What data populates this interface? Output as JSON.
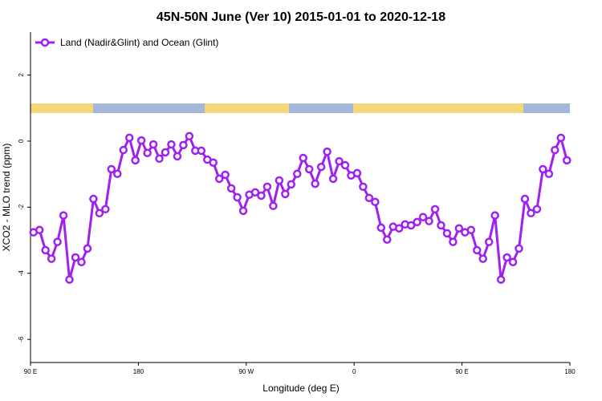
{
  "chart_data": {
    "type": "line",
    "title": "45N-50N June (Ver 10)   2015-01-01 to 2020-12-18",
    "x_label": "Longitude (deg E)",
    "y_label": "XCO2 - MLO trend (ppm)",
    "x": [
      92.5,
      97.5,
      102.5,
      107.5,
      112.5,
      117.5,
      122.5,
      127.5,
      132.5,
      137.5,
      142.5,
      147.5,
      152.5,
      157.5,
      162.5,
      167.5,
      172.5,
      177.5,
      182.5,
      187.5,
      192.5,
      197.5,
      202.5,
      207.5,
      212.5,
      217.5,
      222.5,
      227.5,
      232.5,
      237.5,
      242.5,
      247.5,
      252.5,
      257.5,
      262.5,
      267.5,
      272.5,
      277.5,
      282.5,
      287.5,
      292.5,
      297.5,
      302.5,
      307.5,
      312.5,
      317.5,
      322.5,
      327.5,
      332.5,
      337.5,
      342.5,
      347.5,
      352.5,
      357.5,
      362.5,
      367.5,
      372.5,
      377.5,
      382.5,
      387.5,
      392.5,
      397.5,
      402.5,
      407.5,
      412.5,
      417.5,
      422.5,
      427.5,
      432.5,
      437.5,
      442.5,
      447.5,
      452.5,
      457.5,
      462.5,
      467.5,
      472.5,
      477.5,
      482.5,
      487.5,
      492.5,
      497.5,
      502.5,
      507.5,
      512.5,
      517.5,
      522.5,
      527.5,
      532.5,
      537.5
    ],
    "series": [
      {
        "name": "Land (Nadir&Glint) and Ocean (Glint)",
        "color": "#a020f0",
        "values": [
          -2.76,
          -2.69,
          -3.3,
          -3.56,
          -3.05,
          -2.25,
          -4.19,
          -3.52,
          -3.66,
          -3.25,
          -1.75,
          -2.18,
          -2.06,
          -0.85,
          -0.99,
          -0.27,
          0.1,
          -0.58,
          0.02,
          -0.36,
          -0.1,
          -0.53,
          -0.34,
          -0.1,
          -0.46,
          -0.12,
          0.15,
          -0.29,
          -0.29,
          -0.56,
          -0.65,
          -1.14,
          -1.02,
          -1.43,
          -1.7,
          -2.11,
          -1.62,
          -1.55,
          -1.65,
          -1.38,
          -1.96,
          -1.19,
          -1.6,
          -1.31,
          -0.99,
          -0.51,
          -0.85,
          -1.29,
          -0.78,
          -0.32,
          -1.14,
          -0.61,
          -0.73,
          -1.04,
          -0.97,
          -1.38,
          -1.72,
          -1.84,
          -2.62,
          -2.98,
          -2.59,
          -2.64,
          -2.52,
          -2.55,
          -2.45,
          -2.3,
          -2.42,
          -2.06,
          -2.55,
          -2.79,
          -3.05,
          -2.64,
          -2.76,
          -2.69,
          -3.3,
          -3.56,
          -3.05,
          -2.25,
          -4.19,
          -3.52,
          -3.66,
          -3.25,
          -1.75,
          -2.18,
          -2.06,
          -0.85,
          -0.99,
          -0.27,
          0.1,
          -0.58
        ]
      }
    ],
    "xlim": [
      90,
      540
    ],
    "xticks": [
      {
        "value": 90,
        "label": "90 E"
      },
      {
        "value": 180,
        "label": "180"
      },
      {
        "value": 270,
        "label": "90 W"
      },
      {
        "value": 360,
        "label": "0"
      },
      {
        "value": 450,
        "label": "90 E"
      },
      {
        "value": 540,
        "label": "180"
      }
    ],
    "ylim": [
      -6.7,
      3.3
    ],
    "yticks": [
      -6,
      -4,
      -2,
      0,
      2
    ],
    "legend": "top-left"
  }
}
